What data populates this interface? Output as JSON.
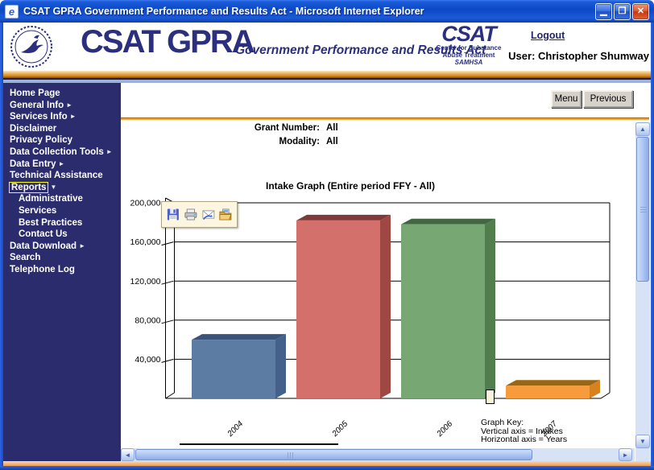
{
  "window": {
    "title": "CSAT GPRA Government Performance and Results Act - Microsoft Internet Explorer",
    "controls": [
      "minimize",
      "maximize",
      "close"
    ]
  },
  "header": {
    "logo_main": "CSAT GPRA",
    "logo_tagline": "Government Performance and Results Act",
    "csat_logo": {
      "acronym": "CSAT",
      "line1": "Center for Substance",
      "line2": "Abuse Treatment",
      "line3": "SAMHSA"
    },
    "logout_label": "Logout",
    "user_label": "User: Christopher Shumway"
  },
  "sidebar": {
    "items": [
      {
        "label": "Home Page"
      },
      {
        "label": "General Info",
        "arrow": "right"
      },
      {
        "label": "Services Info",
        "arrow": "right"
      },
      {
        "label": "Disclaimer"
      },
      {
        "label": "Privacy Policy"
      },
      {
        "label": "Data Collection Tools",
        "arrow": "right"
      },
      {
        "label": "Data Entry",
        "arrow": "right"
      },
      {
        "label": "Technical Assistance"
      },
      {
        "label": "Reports",
        "arrow": "down",
        "selected": true
      },
      {
        "label": "Administrative",
        "indent": true
      },
      {
        "label": "Services",
        "indent": true
      },
      {
        "label": "Best Practices",
        "indent": true
      },
      {
        "label": "Contact Us",
        "indent": true
      },
      {
        "label": "Data Download",
        "arrow": "right"
      },
      {
        "label": "Search"
      },
      {
        "label": "Telephone Log"
      }
    ]
  },
  "toolbar": {
    "menu_label": "Menu",
    "previous_label": "Previous"
  },
  "filters": [
    {
      "label": "Grant Number:",
      "value": "All"
    },
    {
      "label": "Modality:",
      "value": "All"
    }
  ],
  "image_toolbar": {
    "icons": [
      "save",
      "print",
      "email",
      "open-folder"
    ]
  },
  "chart_data": {
    "type": "bar",
    "style": "3d",
    "title": "Intake Graph (Entire period FFY - All)",
    "categories": [
      "2004",
      "2005",
      "2006",
      "2007"
    ],
    "values": [
      60000,
      182000,
      178000,
      13000
    ],
    "ylim": [
      0,
      200000
    ],
    "ytick_labels": [
      "40,000",
      "80,000",
      "120,000",
      "160,000",
      "200,000"
    ],
    "xlabel": "Years",
    "ylabel": "Intakes",
    "grid": true,
    "legend": false,
    "bar_colors_front": [
      "#5C7CA4",
      "#D4706B",
      "#77A873",
      "#F89B3D"
    ],
    "bar_colors_top": [
      "#3A537B",
      "#7E3A38",
      "#42663F",
      "#9B6512"
    ],
    "bar_colors_side": [
      "#44618C",
      "#9E4743",
      "#527E4E",
      "#D5821F"
    ],
    "graph_key": {
      "title": "Graph Key:",
      "lines": [
        "Vertical axis = Intakes",
        "Horizontal axis = Years"
      ]
    }
  }
}
